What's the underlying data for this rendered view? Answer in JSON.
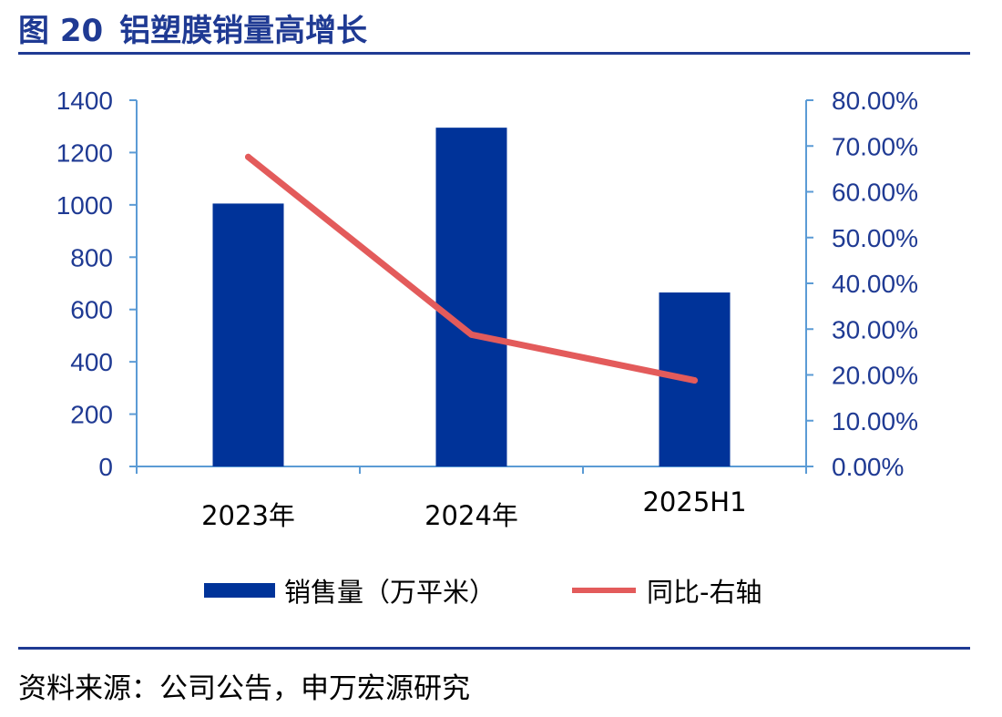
{
  "figure": {
    "number": "图 20",
    "title": "铝塑膜销量高增长",
    "source": "资料来源：公司公告，申万宏源研究"
  },
  "colors": {
    "title": "#1f3a93",
    "bar": "#003399",
    "line": "#e35b5b",
    "axis": "#5b9bd5"
  },
  "chart_data": {
    "type": "bar",
    "categories": [
      "2023年",
      "2024年",
      "2025H1"
    ],
    "series": [
      {
        "name": "销售量（万平米）",
        "type": "bar",
        "axis": "left",
        "values": [
          1005,
          1295,
          665
        ]
      },
      {
        "name": "同比-右轴",
        "type": "line",
        "axis": "right",
        "values": [
          0.676,
          0.288,
          0.188
        ]
      }
    ],
    "y_left": {
      "range": [
        0,
        1400
      ],
      "ticks": [
        0,
        200,
        400,
        600,
        800,
        1000,
        1200,
        1400
      ],
      "tick_labels": [
        "0",
        "200",
        "400",
        "600",
        "800",
        "1000",
        "1200",
        "1400"
      ]
    },
    "y_right": {
      "range": [
        0,
        0.8
      ],
      "ticks": [
        0,
        0.1,
        0.2,
        0.3,
        0.4,
        0.5,
        0.6,
        0.7,
        0.8
      ],
      "tick_labels": [
        "0.00%",
        "10.00%",
        "20.00%",
        "30.00%",
        "40.00%",
        "50.00%",
        "60.00%",
        "70.00%",
        "80.00%"
      ]
    },
    "grid": false,
    "legend_position": "bottom"
  }
}
